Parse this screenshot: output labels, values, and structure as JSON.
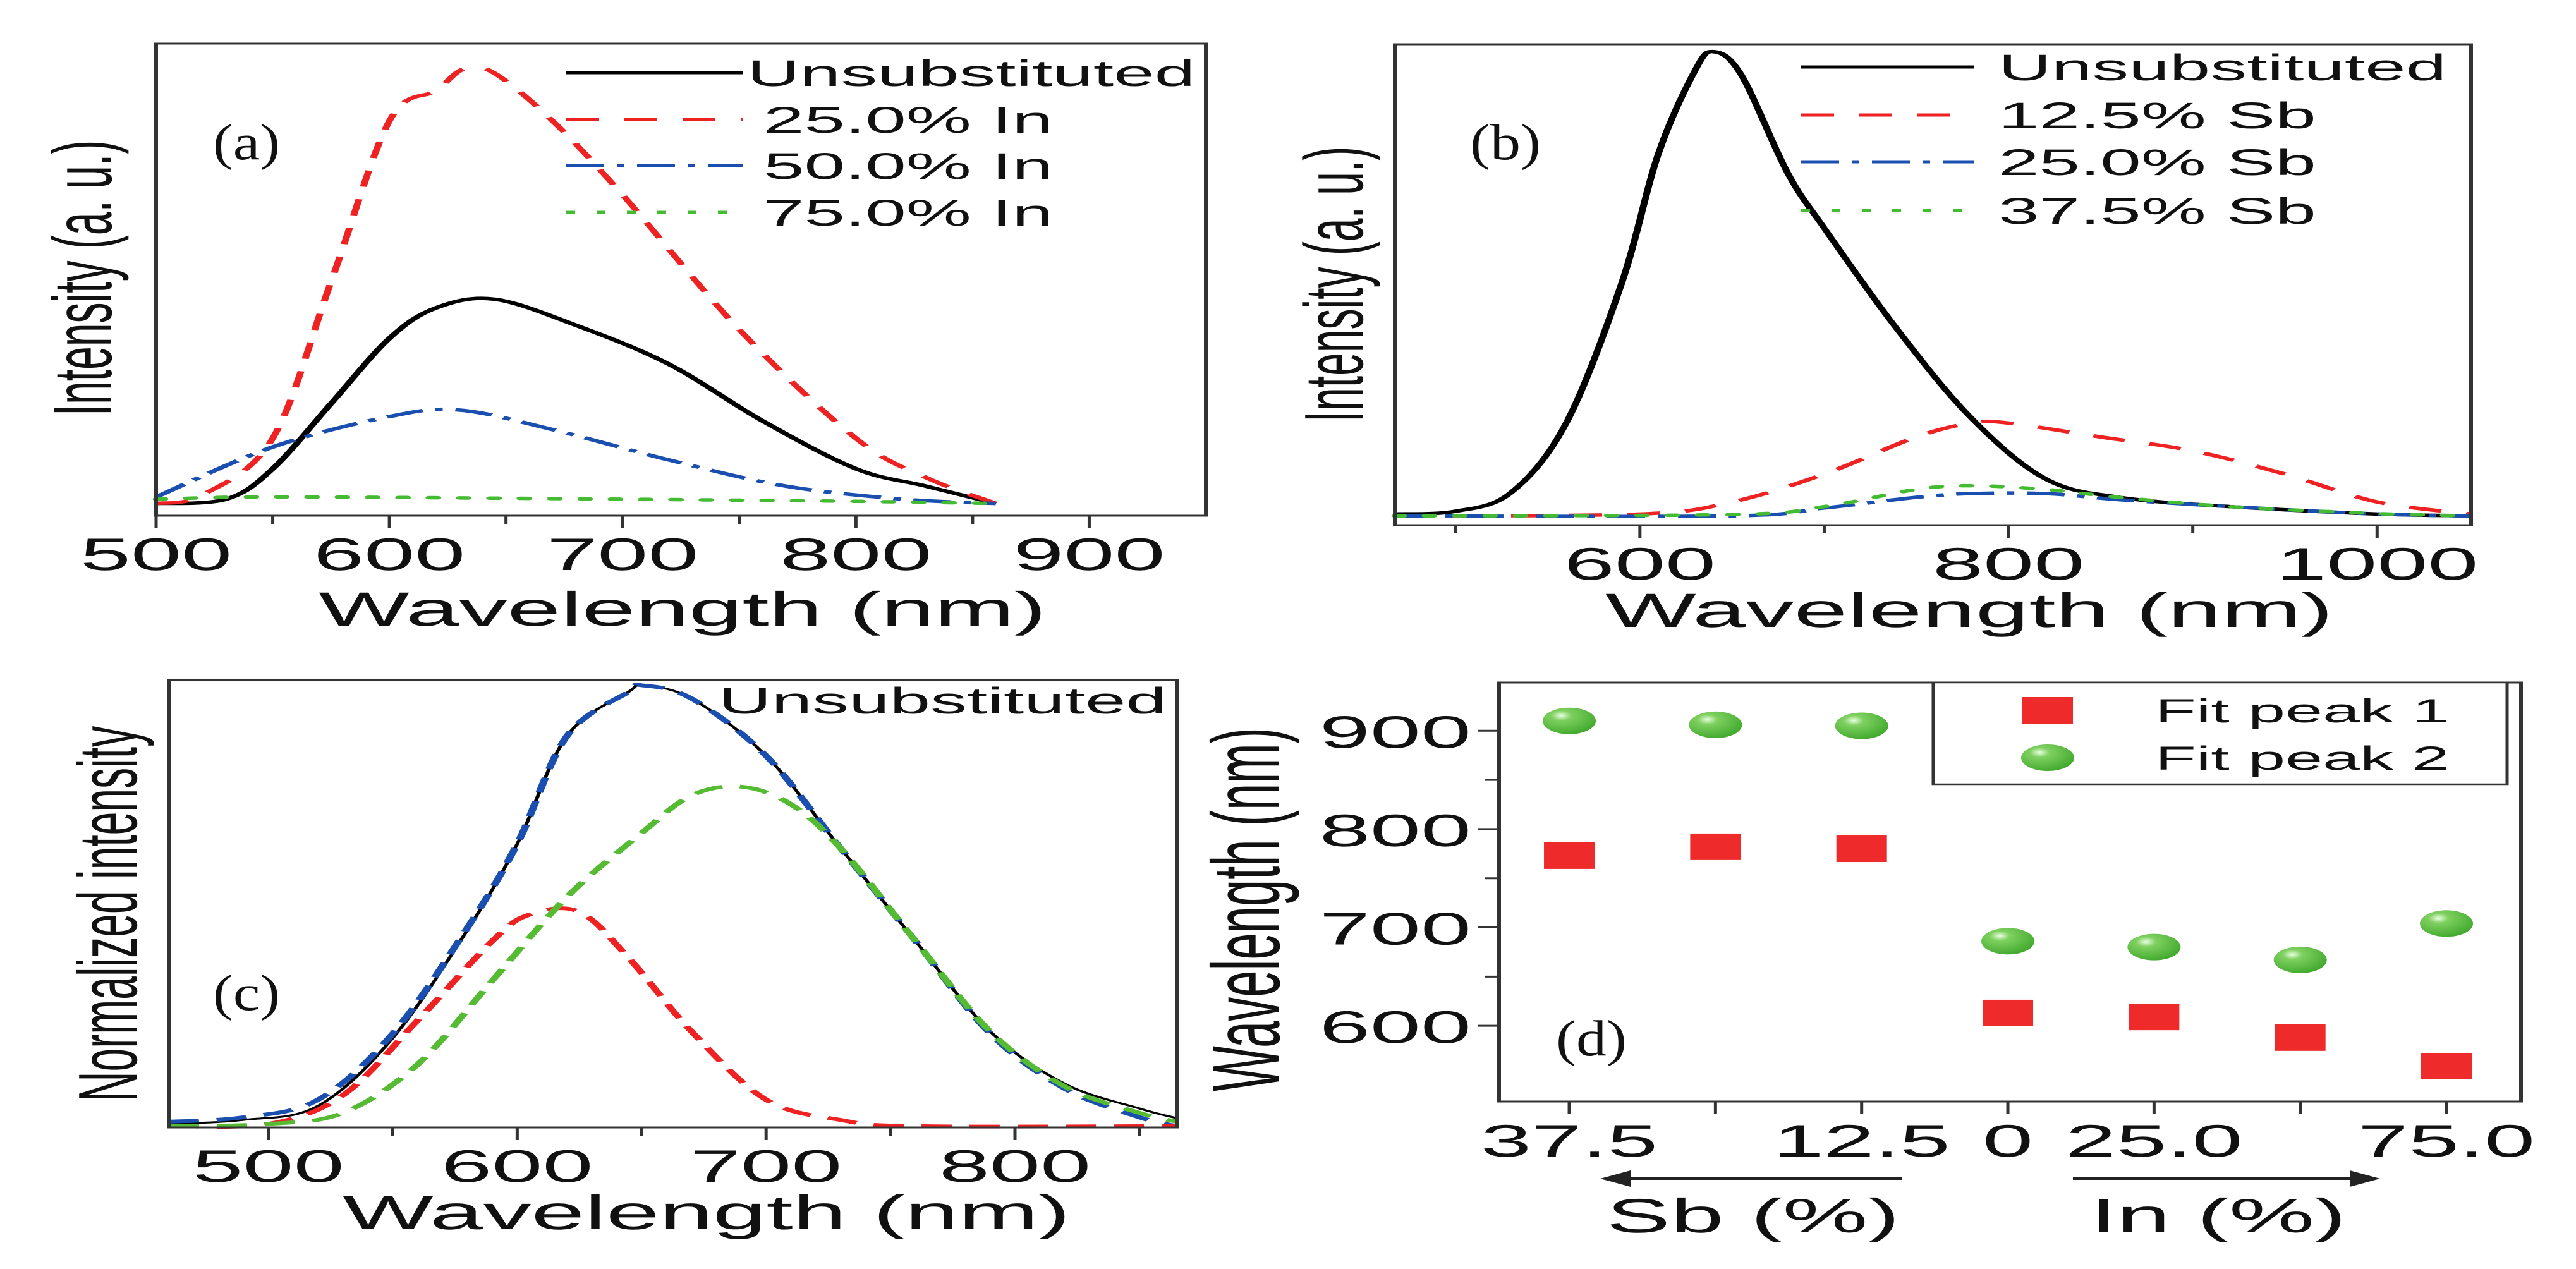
{
  "chart_data": [
    {
      "type": "line",
      "panel_label": "(a)",
      "xlabel": "Wavelength (nm)",
      "ylabel": "Intensity (a. u.)",
      "xlim": [
        500,
        950
      ],
      "ylim": [
        -0.028,
        1.058
      ],
      "xticks": [
        500,
        600,
        700,
        800,
        900
      ],
      "xminor": [
        550,
        650,
        750,
        850
      ],
      "legend_position": "top-right",
      "series": [
        {
          "name": "Unsubstituted",
          "color": "#000000",
          "style": "solid",
          "x": [
            500,
            530,
            550,
            575,
            600,
            620,
            645,
            680,
            720,
            760,
            800,
            830,
            860
          ],
          "y": [
            0,
            0.01,
            0.08,
            0.23,
            0.38,
            0.45,
            0.47,
            0.41,
            0.32,
            0.19,
            0.08,
            0.04,
            0.0
          ]
        },
        {
          "name": "25.0% In",
          "color": "#ee2222",
          "style": "dash",
          "x": [
            500,
            520,
            550,
            575,
            600,
            620,
            632,
            645,
            670,
            700,
            750,
            800,
            830,
            860
          ],
          "y": [
            0,
            0.02,
            0.15,
            0.51,
            0.88,
            0.95,
            1.0,
            0.99,
            0.88,
            0.71,
            0.4,
            0.15,
            0.06,
            0.0
          ]
        },
        {
          "name": "50.0% In",
          "color": "#1a4fb0",
          "style": "dashdot",
          "x": [
            500,
            550,
            600,
            630,
            670,
            720,
            770,
            820,
            860
          ],
          "y": [
            0.015,
            0.13,
            0.2,
            0.215,
            0.17,
            0.1,
            0.04,
            0.01,
            0.0
          ]
        },
        {
          "name": "75.0% In",
          "color": "#44bb33",
          "style": "dot",
          "x": [
            500,
            540,
            600,
            700,
            800,
            860
          ],
          "y": [
            0.01,
            0.015,
            0.014,
            0.01,
            0.005,
            0.0
          ]
        }
      ]
    },
    {
      "type": "line",
      "panel_label": "(b)",
      "xlabel": "Wavelength (nm)",
      "ylabel": "Intensity (a. u.)",
      "xlim": [
        467,
        1051
      ],
      "ylim": [
        -0.02,
        1.016
      ],
      "xticks": [
        600,
        800,
        1000
      ],
      "xminor": [
        500,
        700,
        900
      ],
      "legend_position": "top-right",
      "series": [
        {
          "name": "Unsubstituted",
          "color": "#000000",
          "style": "solid",
          "x": [
            467,
            500,
            530,
            560,
            590,
            610,
            630,
            640,
            655,
            680,
            700,
            740,
            780,
            820,
            860,
            920,
            1000,
            1051
          ],
          "y": [
            0.004,
            0.01,
            0.05,
            0.2,
            0.5,
            0.78,
            0.96,
            1.0,
            0.95,
            0.74,
            0.62,
            0.4,
            0.21,
            0.08,
            0.04,
            0.02,
            0.004,
            0.0
          ]
        },
        {
          "name": "12.5% Sb",
          "color": "#ee2222",
          "style": "dash",
          "x": [
            467,
            600,
            650,
            700,
            750,
            780,
            800,
            850,
            900,
            950,
            1000,
            1051
          ],
          "y": [
            0.0,
            0.004,
            0.03,
            0.09,
            0.17,
            0.2,
            0.2,
            0.17,
            0.14,
            0.09,
            0.03,
            0.004
          ]
        },
        {
          "name": "25.0% Sb",
          "color": "#1a4fb0",
          "style": "dashdot",
          "x": [
            467,
            650,
            700,
            750,
            780,
            820,
            860,
            920,
            1000,
            1051
          ],
          "y": [
            0.0,
            0.0,
            0.017,
            0.04,
            0.048,
            0.048,
            0.035,
            0.02,
            0.004,
            0.0
          ]
        },
        {
          "name": "37.5% Sb",
          "color": "#44bb33",
          "style": "dot",
          "x": [
            467,
            650,
            700,
            750,
            780,
            820,
            860,
            920,
            1000,
            1051
          ],
          "y": [
            0.0,
            0.003,
            0.02,
            0.057,
            0.065,
            0.057,
            0.04,
            0.02,
            0.005,
            0.0
          ]
        }
      ]
    },
    {
      "type": "line",
      "panel_label": "(c)",
      "xlabel": "Wavelength (nm)",
      "ylabel": "Normalized intensity",
      "annotation": "Unsubstituted",
      "xlim": [
        460,
        865
      ],
      "ylim": [
        -0.003,
        1.012
      ],
      "xticks": [
        500,
        600,
        700,
        800
      ],
      "xminor": [
        550,
        650,
        750,
        850
      ],
      "series": [
        {
          "color": "#000000",
          "style": "thin",
          "x": [
            460,
            490,
            520,
            550,
            580,
            600,
            620,
            645,
            650,
            670,
            700,
            730,
            760,
            790,
            820,
            850,
            865
          ],
          "y": [
            0.005,
            0.014,
            0.046,
            0.2,
            0.445,
            0.64,
            0.885,
            0.986,
            1.0,
            0.97,
            0.84,
            0.63,
            0.42,
            0.215,
            0.096,
            0.04,
            0.018
          ]
        },
        {
          "color": "#1a4fb0",
          "style": "longdash",
          "x": [
            460,
            490,
            520,
            550,
            580,
            600,
            620,
            645,
            650,
            670,
            700,
            730,
            760,
            790,
            820,
            850,
            865
          ],
          "y": [
            0.01,
            0.02,
            0.06,
            0.21,
            0.45,
            0.64,
            0.885,
            0.986,
            1.0,
            0.97,
            0.84,
            0.63,
            0.42,
            0.21,
            0.085,
            0.02,
            0.0
          ]
        },
        {
          "color": "#ee2222",
          "style": "longdash",
          "x": [
            460,
            500,
            530,
            560,
            590,
            605,
            625,
            645,
            670,
            700,
            730,
            760,
            865
          ],
          "y": [
            0.0,
            0.005,
            0.07,
            0.24,
            0.42,
            0.48,
            0.486,
            0.38,
            0.215,
            0.06,
            0.014,
            0.0,
            0.0
          ]
        },
        {
          "color": "#55bb33",
          "style": "longdash",
          "x": [
            460,
            500,
            530,
            560,
            590,
            620,
            650,
            670,
            690,
            710,
            730,
            760,
            790,
            820,
            850,
            865
          ],
          "y": [
            0.0,
            0.005,
            0.03,
            0.14,
            0.33,
            0.52,
            0.665,
            0.75,
            0.77,
            0.73,
            0.63,
            0.42,
            0.215,
            0.09,
            0.03,
            0.01
          ]
        }
      ]
    },
    {
      "type": "scatter",
      "panel_label": "(d)",
      "ylabel": "Wavelength (nm)",
      "xlabel_left": "Sb (%)",
      "xlabel_right": "In (%)",
      "x_tick_labels": [
        "37.5",
        "",
        "12.5",
        "0",
        "25.0",
        "",
        "75.0"
      ],
      "ylim": [
        523,
        949
      ],
      "yticks": [
        600,
        700,
        800,
        900
      ],
      "yminor": [
        650,
        750,
        850
      ],
      "legend_position": "top-right",
      "series": [
        {
          "name": "Fit peak 1",
          "marker": "square",
          "color": "#ee2a2a",
          "values": [
            773,
            782,
            780,
            613,
            609,
            588,
            559
          ]
        },
        {
          "name": "Fit peak 2",
          "marker": "circle",
          "color": "#55bb3a",
          "values": [
            910,
            906,
            905,
            686,
            680,
            667,
            704
          ]
        }
      ]
    }
  ]
}
